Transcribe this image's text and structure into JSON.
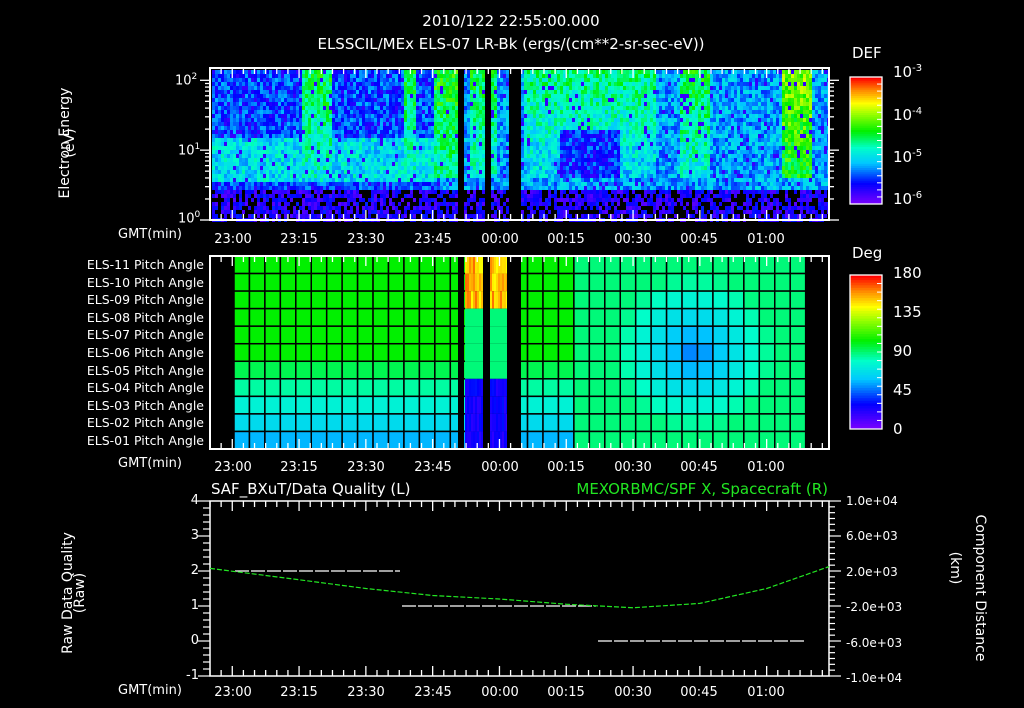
{
  "header": {
    "timestamp": "2010/122 22:55:00.000",
    "subtitle": "ELSSCIL/MEx ELS-07 LR-Bk  (ergs/(cm**2-sr-sec-eV))"
  },
  "panel1": {
    "ylabel": "Electron Energy",
    "yunit": "(eV)",
    "xlabel": "GMT(min)",
    "yticks": [
      "10",
      "10",
      "10"
    ],
    "yexp": [
      "0",
      "1",
      "2"
    ],
    "colorbar": {
      "title": "DEF",
      "ticks": [
        "10",
        "10",
        "10",
        "10"
      ],
      "exps": [
        "-3",
        "-4",
        "-5",
        "-6"
      ]
    }
  },
  "panel2": {
    "xlabel": "GMT(min)",
    "rows": [
      "ELS-11 Pitch Angle",
      "ELS-10 Pitch Angle",
      "ELS-09 Pitch Angle",
      "ELS-08 Pitch Angle",
      "ELS-07 Pitch Angle",
      "ELS-06 Pitch Angle",
      "ELS-05 Pitch Angle",
      "ELS-04 Pitch Angle",
      "ELS-03 Pitch Angle",
      "ELS-02 Pitch Angle",
      "ELS-01 Pitch Angle"
    ],
    "colorbar": {
      "title": "Deg",
      "ticks": [
        "180",
        "135",
        "90",
        "45",
        "0"
      ]
    }
  },
  "panel3": {
    "left_title": "SAF_BXuT/Data Quality (L)",
    "right_title": "MEXORBMC/SPF X, Spacecraft (R)",
    "ylabel_left": "Raw Data Quality",
    "yunit_left": "(Raw)",
    "ylabel_right": "Component Distance",
    "yunit_right": "(km)",
    "xlabel": "GMT(min)",
    "yticks_left": [
      "4",
      "3",
      "2",
      "1",
      "0",
      "-1"
    ],
    "yticks_right": [
      "1.0e+04",
      "6.0e+03",
      "2.0e+03",
      "-2.0e+03",
      "-6.0e+03",
      "-1.0e+04"
    ]
  },
  "xticks": [
    "23:00",
    "23:15",
    "23:30",
    "23:45",
    "00:00",
    "00:15",
    "00:30",
    "00:45",
    "01:00"
  ],
  "colors": {
    "series_right": "#22e622",
    "series_left": "#ffffff",
    "background": "#000000"
  },
  "chart_data": [
    {
      "type": "heatmap",
      "title": "ELSSCIL/MEx ELS-07 LR-Bk (ergs/(cm**2-sr-sec-eV))",
      "xlabel": "GMT(min)",
      "ylabel": "Electron Energy (eV)",
      "yscale": "log",
      "ylim": [
        1,
        150
      ],
      "x_ticks": [
        "23:00",
        "23:15",
        "23:30",
        "23:45",
        "00:00",
        "00:15",
        "00:30",
        "00:45",
        "01:00"
      ],
      "xlim": [
        "22:55",
        "01:14"
      ],
      "colorbar": {
        "label": "DEF",
        "scale": "log",
        "range": [
          1e-06,
          0.001
        ]
      },
      "data_gaps": [
        "23:52-23:53",
        "23:58-23:59",
        "00:03-00:06"
      ]
    },
    {
      "type": "heatmap",
      "title": "Pitch Angle",
      "xlabel": "GMT(min)",
      "categories": [
        "ELS-01",
        "ELS-02",
        "ELS-03",
        "ELS-04",
        "ELS-05",
        "ELS-06",
        "ELS-07",
        "ELS-08",
        "ELS-09",
        "ELS-10",
        "ELS-11"
      ],
      "colorbar": {
        "label": "Deg",
        "range": [
          0,
          180
        ]
      },
      "summary": "~90-110 deg before 00:20 (lower anodes ~60-75 deg); 00:25-00:55 minimum ~50 deg at ELS-06/07; spike 150-180 deg near 23:55 on ELS-10/11"
    },
    {
      "type": "line",
      "title_left": "SAF_BXuT/Data Quality (L)",
      "title_right": "MEXORBMC/SPF X, Spacecraft (R)",
      "xlabel": "GMT(min)",
      "ylabel": "Raw Data Quality (Raw)",
      "ylabel_right": "Component Distance (km)",
      "ylim": [
        -1,
        4
      ],
      "ylim_right": [
        -10000,
        10000
      ],
      "series": [
        {
          "name": "Data Quality",
          "axis": "left",
          "x": [
            "23:00",
            "23:38",
            "23:38",
            "00:21",
            "00:21",
            "01:07"
          ],
          "values": [
            2,
            2,
            1,
            1,
            0,
            0
          ]
        },
        {
          "name": "SPF X",
          "axis": "right",
          "x": [
            "22:55",
            "23:15",
            "23:30",
            "23:45",
            "00:00",
            "00:15",
            "00:30",
            "00:45",
            "01:00",
            "01:14"
          ],
          "values": [
            2300,
            1000,
            0,
            -800,
            -1200,
            -1800,
            -2200,
            -1700,
            0,
            2500
          ]
        }
      ]
    }
  ]
}
